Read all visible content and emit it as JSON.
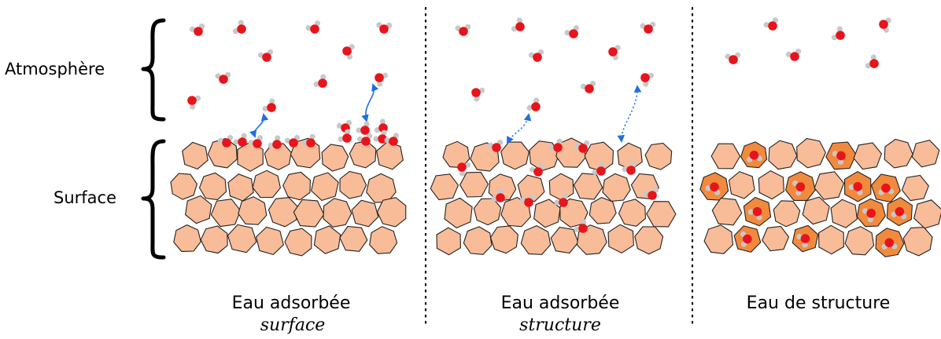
{
  "labels": {
    "atmosphere": "Atmosphère",
    "surface": "Surface"
  },
  "panels": [
    {
      "title": "Eau adsorbée",
      "subtitle": "surface"
    },
    {
      "title": "Eau adsorbée",
      "subtitle": "structure"
    },
    {
      "title": "Eau de structure",
      "subtitle": ""
    }
  ],
  "colors": {
    "oxygen": "#e8141c",
    "hydrogen": "#c8c8c8",
    "grain": "#f9bc98",
    "grain_structural": "#f28a3d",
    "arrow": "#1f6fe0"
  }
}
